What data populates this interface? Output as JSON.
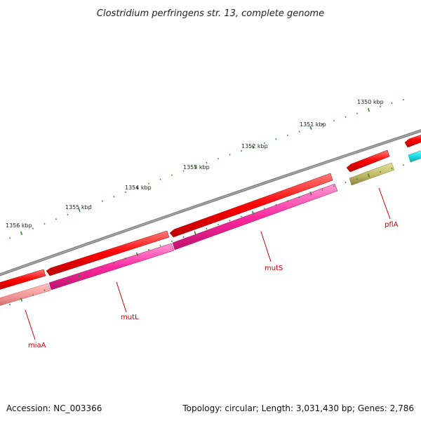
{
  "title": "Clostridium perfringens str. 13, complete genome",
  "footer": {
    "accession": "Accession: NC_003366",
    "summary": "Topology: circular; Length: 3,031,430 bp; Genes: 2,786"
  },
  "ticks": [
    {
      "label": "1350 kbp"
    },
    {
      "label": "1351 kbp"
    },
    {
      "label": "1352 kbp"
    },
    {
      "label": "1353 kbp"
    },
    {
      "label": "1354 kbp"
    },
    {
      "label": "1355 kbp"
    },
    {
      "label": "1356 kbp"
    }
  ],
  "genes": [
    {
      "name": "pflA",
      "color": "#c9c36a"
    },
    {
      "name": "mutS",
      "color": "#ff3aa8"
    },
    {
      "name": "mutL",
      "color": "#ff3aa8"
    },
    {
      "name": "miaA",
      "color": "#f59a9a"
    }
  ],
  "colors": {
    "backbone": "#8a8a8a",
    "strand_feature": "#ff1010",
    "cyan_feature": "#22e6ee",
    "tick": "#2a8a2a",
    "gene_label": "#cc0000"
  }
}
